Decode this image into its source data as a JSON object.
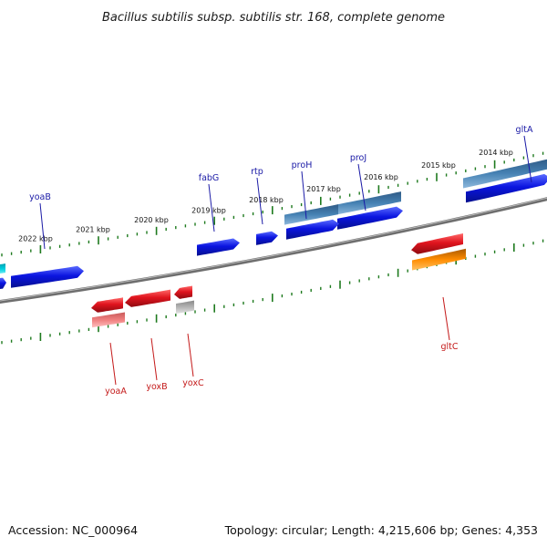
{
  "title": "Bacillus subtilis subsp. subtilis str. 168, complete genome",
  "footer": {
    "accession": "Accession: NC_000964",
    "topology": "Topology: circular; Length: 4,215,606 bp; Genes: 4,353"
  },
  "scale_labels": [
    "2014 kbp",
    "2015 kbp",
    "2016 kbp",
    "2017 kbp",
    "2018 kbp",
    "2019 kbp",
    "2020 kbp",
    "2021 kbp",
    "2022 kbp"
  ],
  "forward_genes": [
    "gltA",
    "proJ",
    "proH",
    "rtp",
    "fabG",
    "yoaB"
  ],
  "reverse_genes": [
    "gltC",
    "yoxC",
    "yoxB",
    "yoaA"
  ],
  "colors": {
    "backbone": "#808080",
    "ticks": "#1e7a1e",
    "cds_forward": "#0a14e0",
    "cds_reverse": "#e0141e",
    "gene_forward": "#4682b4",
    "gene_reverse_light": "#f08080",
    "gene_gltC": "#ff8c00",
    "misc_grey": "#b4b4b4",
    "misc_cyan": "#00c8d8"
  }
}
